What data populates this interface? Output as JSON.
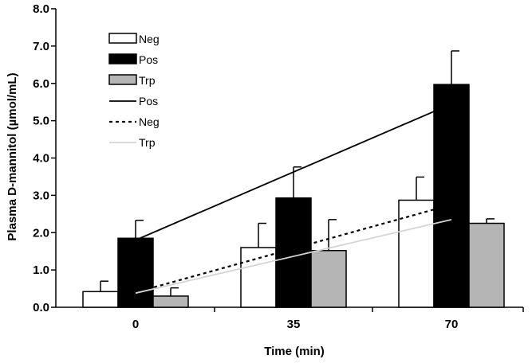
{
  "chart_data": {
    "type": "bar",
    "xlabel": "Time (min)",
    "ylabel": "Plasma D-mannitol (µmol/mL)",
    "categories": [
      "0",
      "35",
      "70"
    ],
    "ylim": [
      0,
      8
    ],
    "yticks": [
      "0.0",
      "1.0",
      "2.0",
      "3.0",
      "4.0",
      "5.0",
      "6.0",
      "7.0",
      "8.0"
    ],
    "grid": false,
    "legend_position": "top-left",
    "bar_series": [
      {
        "name": "Neg",
        "values": [
          0.42,
          1.6,
          2.87
        ],
        "errors": [
          0.28,
          0.65,
          0.62
        ],
        "fill": "#ffffff",
        "stroke": "#000000"
      },
      {
        "name": "Pos",
        "values": [
          1.85,
          2.93,
          5.97
        ],
        "errors": [
          0.48,
          0.83,
          0.9
        ],
        "fill": "#000000",
        "stroke": "#000000"
      },
      {
        "name": "Trp",
        "values": [
          0.3,
          1.52,
          2.25
        ],
        "errors": [
          0.22,
          0.83,
          0.12
        ],
        "fill": "#b5b5b5",
        "stroke": "#000000"
      }
    ],
    "trend_lines": [
      {
        "name": "Pos",
        "points": [
          [
            0,
            1.8
          ],
          [
            70,
            5.45
          ]
        ],
        "color": "#000000",
        "style": "solid"
      },
      {
        "name": "Neg",
        "points": [
          [
            0,
            0.4
          ],
          [
            70,
            2.75
          ]
        ],
        "color": "#000000",
        "style": "dotted"
      },
      {
        "name": "Trp",
        "points": [
          [
            0,
            0.38
          ],
          [
            70,
            2.35
          ]
        ],
        "color": "#d4d4d4",
        "style": "solid"
      }
    ]
  }
}
